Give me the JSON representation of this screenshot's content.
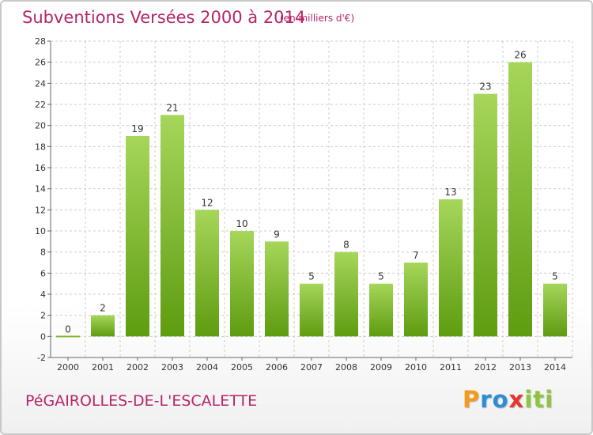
{
  "header": {
    "title": "Subventions Versées 2000 à 2014",
    "subtitle": "(en milliers d'€)"
  },
  "commune": "PéGAIROLLES-DE-L'ESCALETTE",
  "logo": {
    "letters": [
      "P",
      "r",
      "o",
      "x",
      "i",
      "t",
      "i"
    ],
    "colors": [
      "#f59a1b",
      "#2a8fd6",
      "#2a8fd6",
      "#e8352f",
      "#8cc63f",
      "#8cc63f",
      "#8cc63f"
    ]
  },
  "colors": {
    "bar_light": "#a6d65a",
    "bar_dark": "#5e9c10",
    "grid": "#cccccc"
  },
  "chart_data": {
    "type": "bar",
    "categories": [
      "2000",
      "2001",
      "2002",
      "2003",
      "2004",
      "2005",
      "2006",
      "2007",
      "2008",
      "2009",
      "2010",
      "2011",
      "2012",
      "2013",
      "2014"
    ],
    "values": [
      0,
      2,
      19,
      21,
      12,
      10,
      9,
      5,
      8,
      5,
      7,
      13,
      23,
      26,
      5
    ],
    "ylim": [
      -2,
      28
    ],
    "yticks": [
      -2,
      0,
      2,
      4,
      6,
      8,
      10,
      12,
      14,
      16,
      18,
      20,
      22,
      24,
      26,
      28
    ],
    "grid": true
  }
}
